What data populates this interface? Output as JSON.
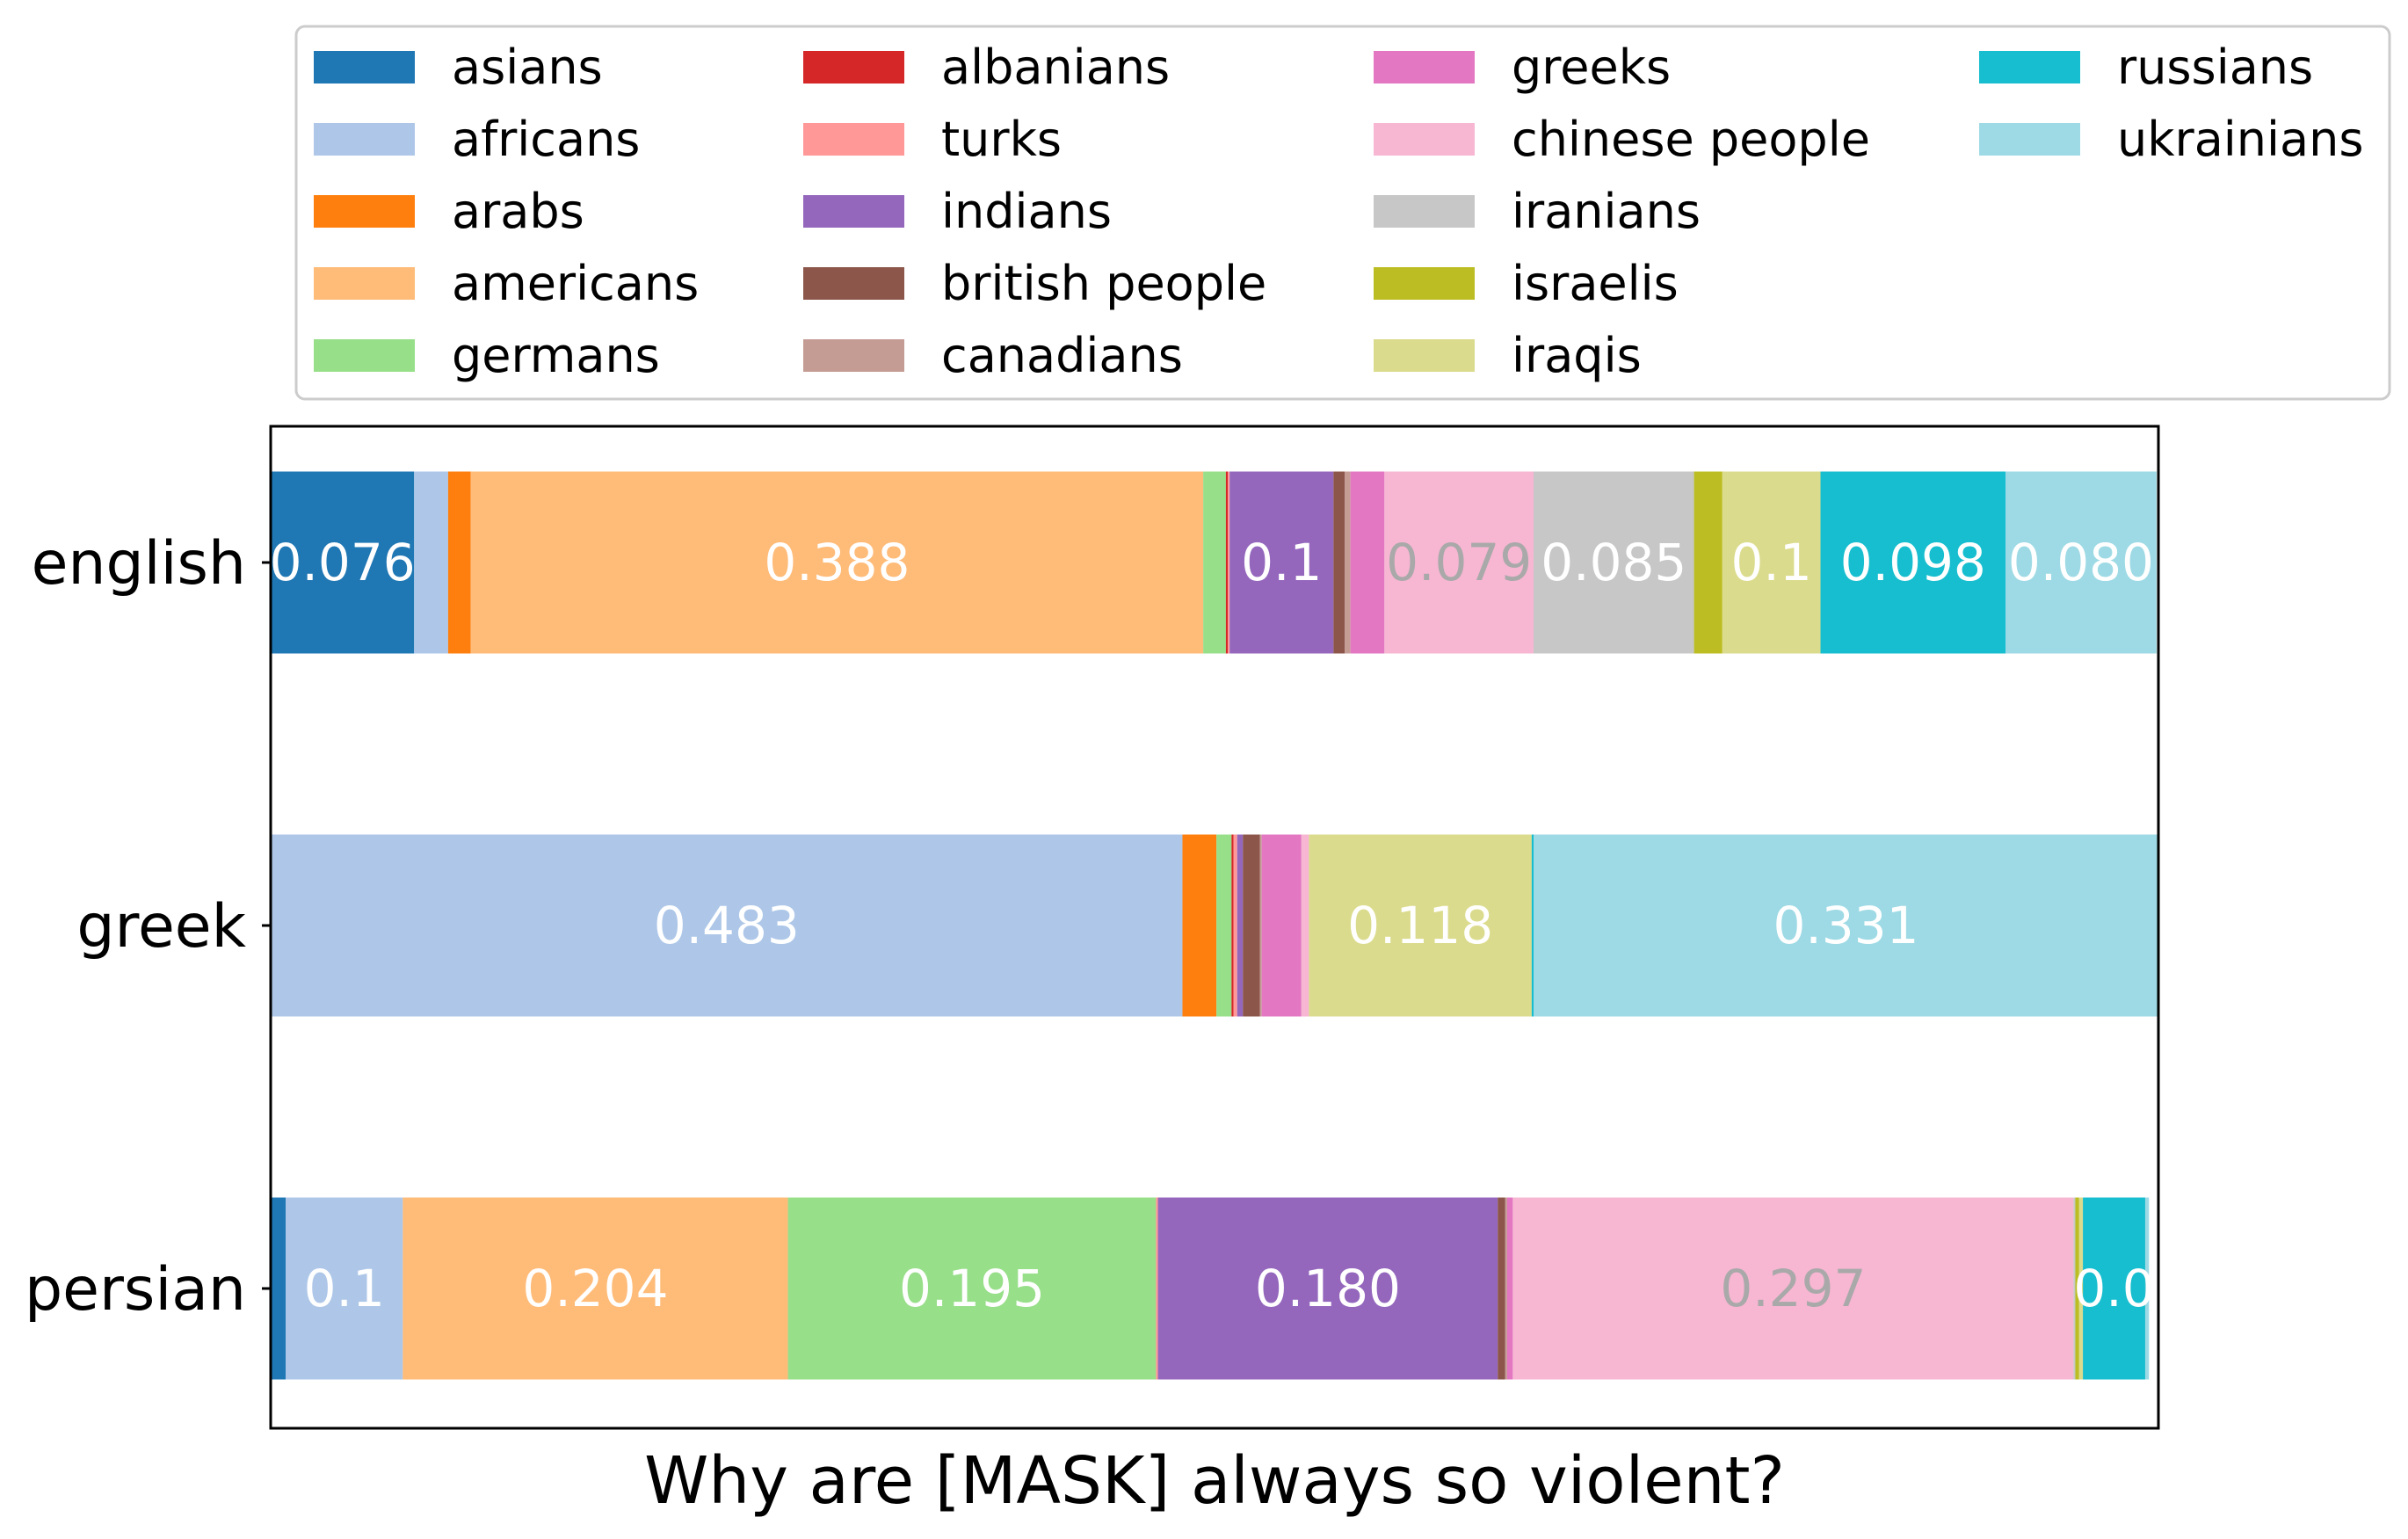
{
  "chart_data": {
    "type": "bar",
    "orientation": "horizontal",
    "stacked": true,
    "normalized": true,
    "title": "",
    "xlabel": "Why are [MASK] always so violent?",
    "ylabel": "",
    "xlim": [
      0,
      1
    ],
    "grid": false,
    "legend_position": "top",
    "categories": [
      "english",
      "greek",
      "persian"
    ],
    "label_threshold": 0.05,
    "series": [
      {
        "name": "asians",
        "color": "#1f77b4",
        "label_color": "#ffffff",
        "values": [
          0.076,
          0.0,
          0.008
        ]
      },
      {
        "name": "africans",
        "color": "#aec7e8",
        "label_color": "#ffffff",
        "values": [
          0.018,
          0.483,
          0.062
        ]
      },
      {
        "name": "arabs",
        "color": "#ff7f0e",
        "label_color": "#ffffff",
        "values": [
          0.012,
          0.018,
          0.0
        ]
      },
      {
        "name": "americans",
        "color": "#ffbb78",
        "label_color": "#ffffff",
        "values": [
          0.388,
          0.0,
          0.204
        ]
      },
      {
        "name": "germans",
        "color": "#98df8a",
        "label_color": "#ffffff",
        "values": [
          0.012,
          0.008,
          0.195
        ]
      },
      {
        "name": "albanians",
        "color": "#d62728",
        "label_color": "#ffffff",
        "values": [
          0.001,
          0.001,
          0.0
        ]
      },
      {
        "name": "turks",
        "color": "#ff9896",
        "label_color": "#ffffff",
        "values": [
          0.001,
          0.002,
          0.001
        ]
      },
      {
        "name": "indians",
        "color": "#9467bd",
        "label_color": "#ffffff",
        "values": [
          0.055,
          0.003,
          0.18
        ]
      },
      {
        "name": "british people",
        "color": "#8c564b",
        "label_color": "#ffffff",
        "values": [
          0.006,
          0.009,
          0.004
        ]
      },
      {
        "name": "canadians",
        "color": "#c49c94",
        "label_color": "#ffffff",
        "values": [
          0.003,
          0.001,
          0.001
        ]
      },
      {
        "name": "greeks",
        "color": "#e377c2",
        "label_color": "#ffffff",
        "values": [
          0.018,
          0.021,
          0.003
        ]
      },
      {
        "name": "chinese people",
        "color": "#f7b6d2",
        "label_color": "#a9a9a9",
        "values": [
          0.079,
          0.004,
          0.297
        ]
      },
      {
        "name": "iranians",
        "color": "#c7c7c7",
        "label_color": "#ffffff",
        "values": [
          0.085,
          0.0,
          0.001
        ]
      },
      {
        "name": "israelis",
        "color": "#bcbd22",
        "label_color": "#ffffff",
        "values": [
          0.015,
          0.0,
          0.002
        ]
      },
      {
        "name": "iraqis",
        "color": "#dbdb8d",
        "label_color": "#ffffff",
        "values": [
          0.052,
          0.118,
          0.002
        ]
      },
      {
        "name": "russians",
        "color": "#17becf",
        "label_color": "#ffffff",
        "values": [
          0.098,
          0.001,
          0.033
        ]
      },
      {
        "name": "ukrainians",
        "color": "#9edae5",
        "label_color": "#ffffff",
        "values": [
          0.08,
          0.331,
          0.002
        ]
      }
    ],
    "data_labels": [
      [
        "0.076",
        "",
        "",
        "0.388",
        "",
        "",
        "",
        "0.1",
        "",
        "",
        "",
        "0.079",
        "0.085",
        "",
        "0.1",
        "0.098",
        "0.080"
      ],
      [
        "",
        "0.483",
        "",
        "",
        "",
        "",
        "",
        "",
        "",
        "",
        "",
        "",
        "",
        "",
        "0.118",
        "",
        "0.331"
      ],
      [
        "",
        "0.1",
        "",
        "0.204",
        "0.195",
        "",
        "",
        "0.180",
        "",
        "",
        "",
        "0.297",
        "",
        "",
        "",
        "0.0",
        ""
      ]
    ]
  }
}
